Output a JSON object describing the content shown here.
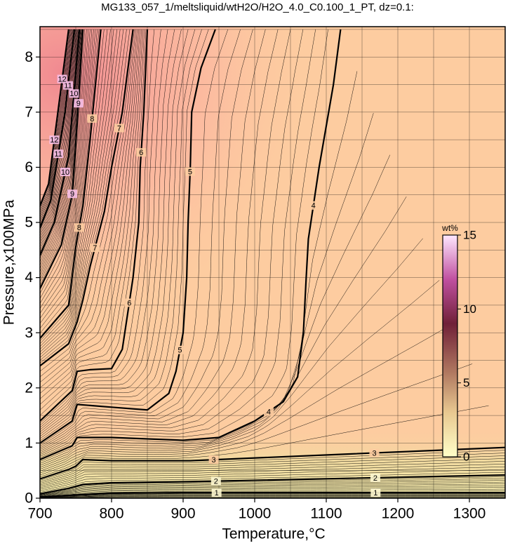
{
  "chart_data": {
    "type": "contour",
    "title": "MG133_057_1/meltsliquid/wtH2O/H2O_4.0_C0.100_1_PT, dz=0.1:",
    "x_label": "Temperature,°C",
    "y_label": "Pressure,x100MPa",
    "xlim": [
      700,
      1350
    ],
    "ylim": [
      0,
      8.55
    ],
    "xticks": [
      700,
      800,
      900,
      1000,
      1100,
      1200,
      1300
    ],
    "yticks": [
      0,
      1,
      2,
      3,
      4,
      5,
      6,
      7,
      8
    ],
    "grid": true,
    "series": [
      {
        "name": "1",
        "x": [
          700,
          750,
          800,
          900,
          1000,
          1130,
          1350
        ],
        "y": [
          0.02,
          0.06,
          0.09,
          0.1,
          0.1,
          0.1,
          0.1
        ]
      },
      {
        "name": "2",
        "x": [
          700,
          740,
          760,
          800,
          910,
          1130,
          1350
        ],
        "y": [
          0.08,
          0.18,
          0.25,
          0.28,
          0.3,
          0.36,
          0.42
        ]
      },
      {
        "name": "3",
        "x": [
          700,
          740,
          750,
          760,
          800,
          910,
          1130,
          1350
        ],
        "y": [
          0.35,
          0.52,
          0.58,
          0.7,
          0.68,
          0.68,
          0.8,
          0.92
        ]
      },
      {
        "name": "4",
        "x": [
          700,
          745,
          752,
          800,
          900,
          950,
          1000,
          1040,
          1060,
          1068,
          1072,
          1075,
          1090,
          1110,
          1120
        ],
        "y": [
          0.7,
          0.95,
          1.1,
          1.1,
          1.05,
          1.1,
          1.4,
          1.75,
          2.2,
          3.0,
          4.0,
          4.7,
          6.0,
          7.5,
          8.5
        ]
      },
      {
        "name": "5",
        "x": [
          700,
          745,
          752,
          800,
          850,
          880,
          890,
          900,
          905,
          907,
          910,
          912,
          925,
          945
        ],
        "y": [
          1.0,
          1.4,
          1.7,
          1.65,
          1.6,
          1.9,
          2.3,
          3.0,
          4.0,
          5.0,
          6.0,
          7.0,
          7.8,
          8.5
        ]
      },
      {
        "name": "6",
        "x": [
          700,
          745,
          752,
          770,
          800,
          815,
          822,
          830,
          838,
          840,
          845,
          850
        ],
        "y": [
          1.4,
          1.95,
          2.3,
          2.33,
          2.35,
          2.7,
          3.3,
          4.0,
          5.0,
          6.0,
          7.0,
          8.5
        ]
      },
      {
        "name": "7",
        "x": [
          700,
          740,
          752,
          760,
          770,
          790,
          800,
          815,
          830
        ],
        "y": [
          2.4,
          2.8,
          3.2,
          3.6,
          4.2,
          5.2,
          6.0,
          7.0,
          8.5
        ]
      },
      {
        "name": "8",
        "x": [
          700,
          740,
          750,
          760,
          770,
          785
        ],
        "y": [
          2.9,
          3.5,
          4.55,
          5.3,
          6.5,
          8.5
        ]
      },
      {
        "name": "9",
        "x": [
          700,
          730,
          745,
          752,
          760
        ],
        "y": [
          3.8,
          4.6,
          5.5,
          6.8,
          8.5
        ]
      },
      {
        "name": "10",
        "x": [
          700,
          720,
          740,
          755
        ],
        "y": [
          4.4,
          5.0,
          6.2,
          8.5
        ]
      },
      {
        "name": "11",
        "x": [
          700,
          715,
          735,
          748
        ],
        "y": [
          4.9,
          5.4,
          7.0,
          8.5
        ]
      },
      {
        "name": "12",
        "x": [
          700,
          712,
          730,
          740
        ],
        "y": [
          5.3,
          5.7,
          7.5,
          8.5
        ]
      }
    ],
    "colorbar": {
      "label": "wt%",
      "lim": [
        0,
        15
      ],
      "ticks": [
        0,
        5,
        10,
        15
      ]
    }
  }
}
